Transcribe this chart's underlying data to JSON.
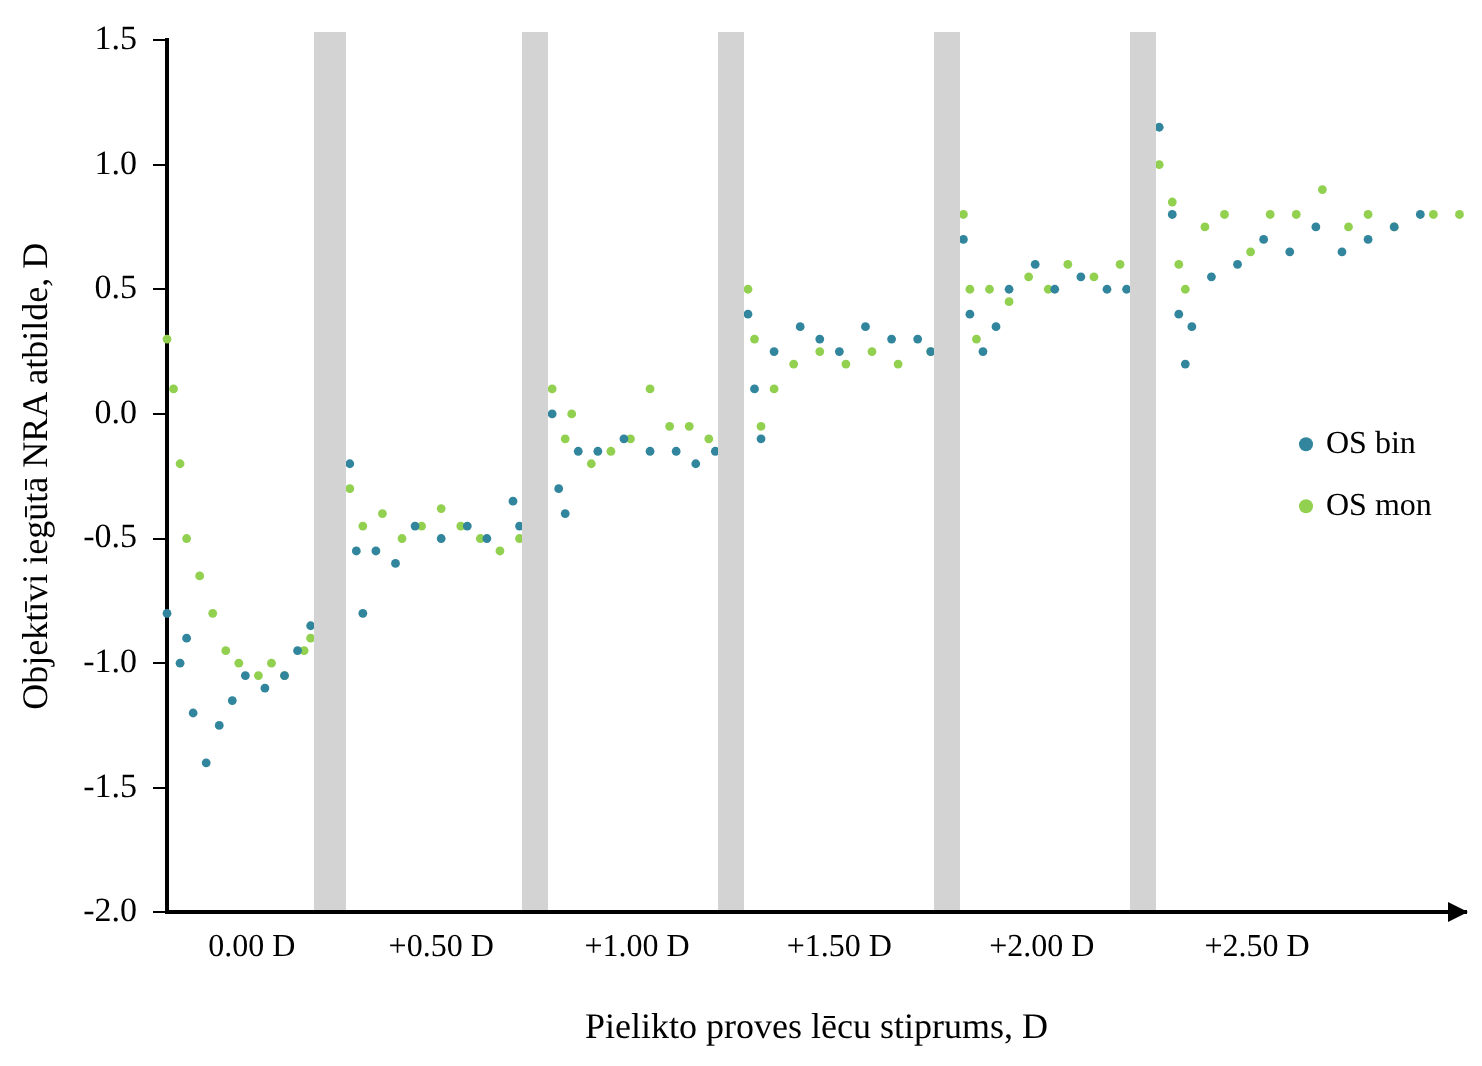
{
  "chart_data": {
    "type": "scatter",
    "xlabel": "Pielikto proves lēcu stiprums, D",
    "ylabel": "Objektīvi iegūtā NRA atbilde, D",
    "categories": [
      null,
      null,
      null,
      null,
      null,
      null,
      null,
      null,
      null,
      null,
      null,
      null,
      null,
      "0.00 D",
      null,
      null,
      null,
      null,
      null,
      null,
      null,
      null,
      null,
      null,
      null,
      null,
      null,
      null,
      null,
      null,
      null,
      null,
      null,
      null,
      null,
      null,
      null,
      null,
      null,
      null,
      null,
      null,
      "+0.50 D",
      null,
      null,
      null,
      null,
      null,
      null,
      null,
      null,
      null,
      null,
      null,
      null,
      null,
      null,
      null,
      null,
      null,
      null,
      null,
      null,
      null,
      null,
      null,
      null,
      null,
      null,
      null,
      null,
      null,
      "+1.00 D",
      null,
      null,
      null,
      null,
      null,
      null,
      null,
      null,
      null,
      null,
      null,
      null,
      null,
      null,
      null,
      null,
      null,
      null,
      null,
      null,
      null,
      null,
      null,
      null,
      null,
      null,
      null,
      null,
      null,
      null,
      "+1.50 D",
      null,
      null,
      null,
      null,
      null,
      null,
      null,
      null,
      null,
      null,
      null,
      null,
      null,
      null,
      null,
      null,
      null,
      null,
      null,
      null,
      null,
      null,
      null,
      null,
      null,
      null,
      null,
      null,
      null,
      null,
      "+2.00 D",
      null,
      null,
      null,
      null,
      null,
      null,
      null,
      null,
      null,
      null,
      null,
      null,
      null,
      null,
      null,
      null,
      null,
      null,
      null,
      null,
      null,
      null,
      null,
      null,
      null,
      null,
      null,
      null,
      null,
      null,
      null,
      null,
      "+2.50 D",
      null,
      null,
      null,
      null,
      null,
      null,
      null,
      null,
      null,
      null,
      null,
      null,
      null,
      null,
      null,
      null,
      null,
      null,
      null,
      null,
      null,
      null,
      null,
      null,
      null,
      null,
      null,
      null,
      null,
      null,
      null,
      null
    ],
    "ylim": [
      -2,
      1.5
    ],
    "yticks": [
      {
        "value": -2,
        "label": "-2.0"
      },
      {
        "value": -1.5,
        "label": "-1.5"
      },
      {
        "value": -1,
        "label": "-1.0"
      },
      {
        "value": -0.5,
        "label": "-0.5"
      },
      {
        "value": 0,
        "label": "0.0"
      },
      {
        "value": 0.5,
        "label": "0.5"
      },
      {
        "value": 1,
        "label": "1.0"
      },
      {
        "value": 1.5,
        "label": "1.5"
      }
    ],
    "series": [
      {
        "name": "OS bin",
        "color": "#31859c",
        "values": [
          -0.8,
          null,
          -1,
          -0.9,
          -1.2,
          null,
          -1.4,
          null,
          -1.25,
          null,
          -1.15,
          null,
          -1.05,
          null,
          null,
          -1.1,
          null,
          null,
          -1.05,
          null,
          -0.95,
          null,
          -0.85,
          null,
          null,
          null,
          null,
          null,
          -0.2,
          -0.55,
          -0.8,
          null,
          -0.55,
          null,
          null,
          -0.6,
          null,
          null,
          -0.45,
          null,
          null,
          null,
          -0.5,
          null,
          null,
          null,
          -0.45,
          null,
          null,
          -0.5,
          null,
          null,
          null,
          -0.35,
          -0.45,
          null,
          null,
          null,
          null,
          0,
          -0.3,
          -0.4,
          null,
          -0.15,
          null,
          null,
          -0.15,
          null,
          null,
          null,
          -0.1,
          null,
          null,
          null,
          -0.15,
          null,
          null,
          null,
          -0.15,
          null,
          null,
          -0.2,
          null,
          null,
          -0.15,
          null,
          null,
          null,
          null,
          0.4,
          0.1,
          -0.1,
          null,
          0.25,
          null,
          null,
          null,
          0.35,
          null,
          null,
          0.3,
          null,
          null,
          0.25,
          null,
          null,
          null,
          0.35,
          null,
          null,
          null,
          0.3,
          null,
          null,
          null,
          0.3,
          null,
          0.25,
          null,
          null,
          null,
          null,
          0.7,
          0.4,
          null,
          0.25,
          null,
          0.35,
          null,
          0.5,
          null,
          null,
          null,
          0.6,
          null,
          null,
          0.5,
          null,
          null,
          null,
          0.55,
          null,
          null,
          null,
          0.5,
          null,
          null,
          0.5,
          null,
          null,
          null,
          null,
          1.15,
          null,
          0.8,
          0.4,
          0.2,
          0.35,
          null,
          null,
          0.55,
          null,
          null,
          null,
          0.6,
          null,
          null,
          null,
          0.7,
          null,
          null,
          null,
          0.65,
          null,
          null,
          null,
          0.75,
          null,
          null,
          null,
          0.65,
          null,
          null,
          null,
          0.7,
          null,
          null,
          null,
          0.75,
          null,
          null,
          null,
          0.8,
          null,
          null,
          null,
          null,
          null,
          null,
          null
        ]
      },
      {
        "name": "OS mon",
        "color": "#92d050",
        "values": [
          0.3,
          0.1,
          -0.2,
          -0.5,
          null,
          -0.65,
          null,
          -0.8,
          null,
          -0.95,
          null,
          -1,
          null,
          null,
          -1.05,
          null,
          -1,
          null,
          -1.05,
          null,
          null,
          -0.95,
          -0.9,
          null,
          null,
          null,
          null,
          null,
          -0.3,
          null,
          -0.45,
          null,
          null,
          -0.4,
          null,
          null,
          -0.5,
          null,
          null,
          -0.45,
          null,
          null,
          -0.38,
          null,
          null,
          -0.45,
          null,
          null,
          -0.5,
          null,
          null,
          -0.55,
          null,
          null,
          -0.5,
          null,
          null,
          null,
          null,
          0.1,
          null,
          -0.1,
          0,
          null,
          null,
          -0.2,
          null,
          null,
          -0.15,
          null,
          null,
          -0.1,
          null,
          null,
          0.1,
          null,
          null,
          -0.05,
          null,
          null,
          -0.05,
          null,
          null,
          -0.1,
          null,
          null,
          null,
          null,
          null,
          0.5,
          0.3,
          -0.05,
          null,
          0.1,
          null,
          null,
          0.2,
          null,
          null,
          null,
          0.25,
          null,
          null,
          null,
          0.2,
          null,
          null,
          null,
          0.25,
          null,
          null,
          null,
          0.2,
          null,
          null,
          null,
          null,
          0.25,
          null,
          null,
          null,
          null,
          0.8,
          0.5,
          0.3,
          null,
          0.5,
          null,
          null,
          0.45,
          null,
          null,
          0.55,
          null,
          null,
          0.5,
          null,
          null,
          0.6,
          null,
          null,
          null,
          0.55,
          null,
          null,
          null,
          0.6,
          null,
          null,
          null,
          null,
          null,
          1,
          null,
          0.85,
          0.6,
          0.5,
          null,
          null,
          0.75,
          null,
          null,
          0.8,
          null,
          null,
          null,
          0.65,
          null,
          null,
          0.8,
          null,
          null,
          null,
          0.8,
          null,
          null,
          null,
          0.9,
          null,
          null,
          null,
          0.75,
          null,
          null,
          0.8,
          null,
          null,
          null,
          0.75,
          null,
          null,
          null,
          null,
          null,
          0.8,
          null,
          null,
          null,
          0.8,
          null
        ]
      }
    ],
    "marker": "circle",
    "grid": false,
    "legend": "right"
  }
}
